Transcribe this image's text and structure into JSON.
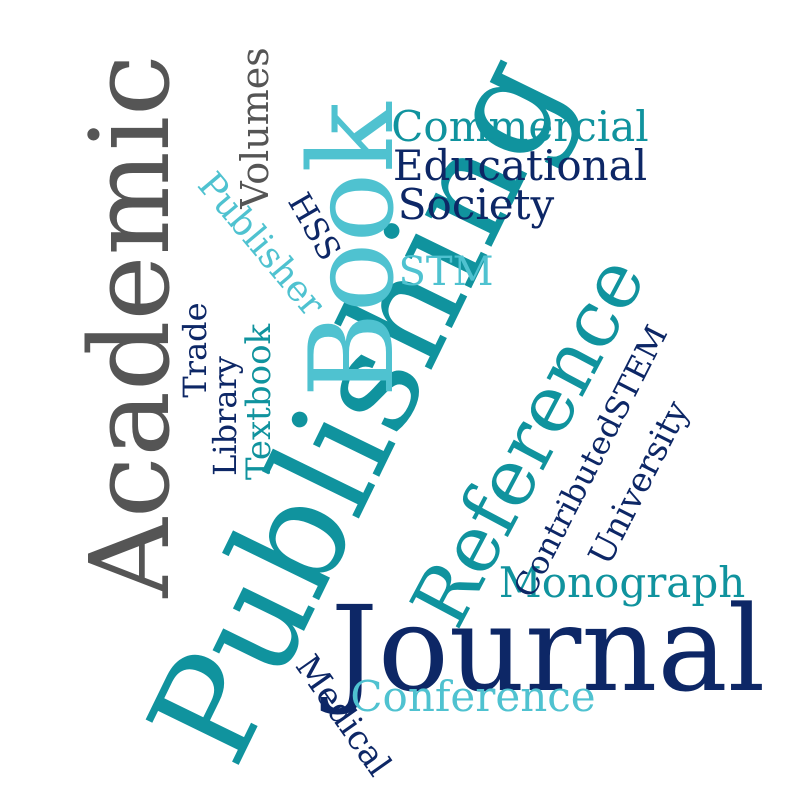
{
  "words": [
    {
      "text": "Publishing",
      "color": "teal"
    },
    {
      "text": "Academic",
      "color": "gray"
    },
    {
      "text": "Journal",
      "color": "navy"
    },
    {
      "text": "Book",
      "color": "lightteal"
    },
    {
      "text": "Reference",
      "color": "teal"
    },
    {
      "text": "Commercial",
      "color": "teal"
    },
    {
      "text": "Educational",
      "color": "navy"
    },
    {
      "text": "Society",
      "color": "navy"
    },
    {
      "text": "STM",
      "color": "lightteal"
    },
    {
      "text": "HSS",
      "color": "navy"
    },
    {
      "text": "Volumes",
      "color": "gray"
    },
    {
      "text": "Publisher",
      "color": "lightteal"
    },
    {
      "text": "Trade",
      "color": "navy"
    },
    {
      "text": "Library",
      "color": "navy"
    },
    {
      "text": "Textbook",
      "color": "teal"
    },
    {
      "text": "ContributedSTEM",
      "color": "navy"
    },
    {
      "text": "Monograph",
      "color": "teal"
    },
    {
      "text": "University",
      "color": "navy"
    },
    {
      "text": "Conference",
      "color": "lightteal"
    },
    {
      "text": "Medical",
      "color": "navy"
    }
  ],
  "palette": {
    "teal": "#10939e",
    "lightteal": "#4fc2d0",
    "navy": "#0d2766",
    "gray": "#555555"
  }
}
